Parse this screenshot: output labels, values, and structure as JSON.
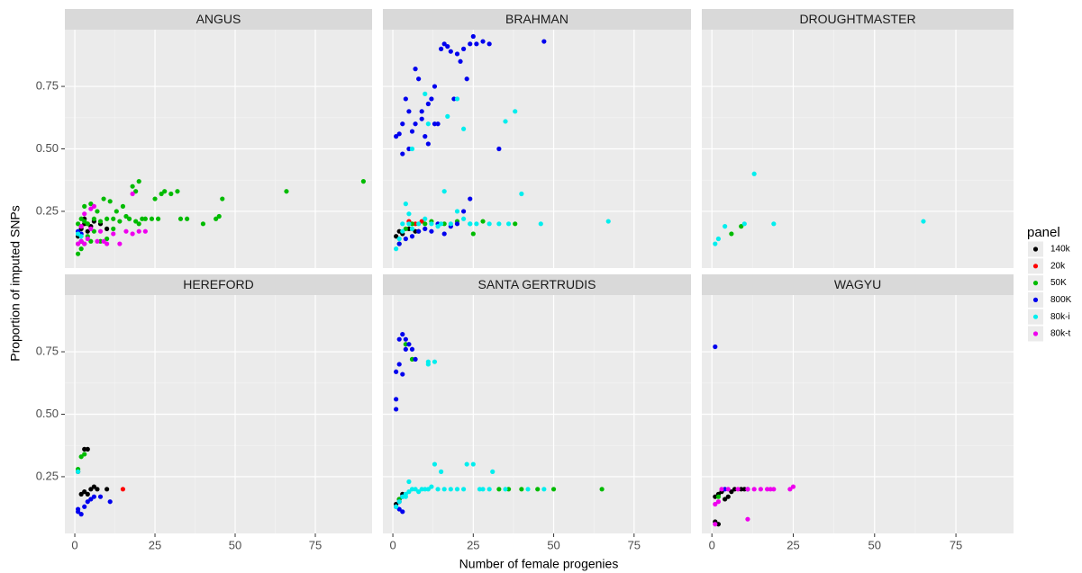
{
  "chart_data": {
    "type": "scatter",
    "xlabel": "Number of female progenies",
    "ylabel": "Proportion of imputed SNPs",
    "legend_title": "panel",
    "legend_position": "right",
    "grid": true,
    "xlim": [
      -3.1,
      92.7
    ],
    "ylim": [
      0.023,
      0.977
    ],
    "xticks": [
      0,
      25,
      50,
      75
    ],
    "yticks": [
      0.25,
      {
        "value": 0.5,
        "label": "0.50"
      },
      0.75
    ],
    "series": [
      {
        "name": "140k",
        "color": "#000000"
      },
      {
        "name": "20k",
        "color": "#ff0000"
      },
      {
        "name": "50K",
        "color": "#00bb00"
      },
      {
        "name": "800K",
        "color": "#0000ee"
      },
      {
        "name": "80k-i",
        "color": "#00eeee"
      },
      {
        "name": "80k-t",
        "color": "#ee00ee"
      }
    ],
    "facets": [
      {
        "title": "ANGUS",
        "series": [
          {
            "x": [
              1,
              2,
              3,
              4,
              5,
              6,
              8,
              10,
              3,
              2
            ],
            "values": [
              0.15,
              0.18,
              0.2,
              0.17,
              0.19,
              0.21,
              0.2,
              0.18,
              0.22,
              0.13
            ]
          },
          {
            "x": [
              2,
              4
            ],
            "values": [
              0.19,
              0.2
            ]
          },
          {
            "x": [
              1,
              1,
              2,
              3,
              3,
              4,
              5,
              6,
              7,
              8,
              9,
              10,
              11,
              12,
              13,
              14,
              15,
              16,
              17,
              18,
              19,
              20,
              21,
              22,
              24,
              25,
              26,
              27,
              28,
              30,
              32,
              33,
              35,
              40,
              44,
              45,
              46,
              66,
              90,
              20,
              19,
              10,
              5,
              4,
              3,
              2,
              1,
              6,
              8,
              12
            ],
            "values": [
              0.08,
              0.2,
              0.22,
              0.27,
              0.21,
              0.2,
              0.28,
              0.22,
              0.25,
              0.21,
              0.3,
              0.22,
              0.29,
              0.22,
              0.25,
              0.21,
              0.27,
              0.23,
              0.22,
              0.35,
              0.33,
              0.37,
              0.22,
              0.22,
              0.22,
              0.3,
              0.22,
              0.32,
              0.33,
              0.32,
              0.33,
              0.22,
              0.22,
              0.2,
              0.22,
              0.23,
              0.3,
              0.33,
              0.37,
              0.2,
              0.21,
              0.14,
              0.13,
              0.15,
              0.12,
              0.1,
              0.12,
              0.17,
              0.13,
              0.18
            ]
          },
          {
            "x": [
              1,
              2
            ],
            "values": [
              0.17,
              0.16
            ]
          },
          {
            "x": [
              1,
              2
            ],
            "values": [
              0.16,
              0.15
            ]
          },
          {
            "x": [
              1,
              2,
              3,
              4,
              5,
              6,
              7,
              8,
              9,
              10,
              12,
              14,
              16,
              18,
              20,
              22,
              3,
              5,
              2,
              18
            ],
            "values": [
              0.12,
              0.13,
              0.12,
              0.14,
              0.26,
              0.27,
              0.13,
              0.17,
              0.13,
              0.12,
              0.16,
              0.12,
              0.17,
              0.16,
              0.17,
              0.17,
              0.24,
              0.18,
              0.19,
              0.32
            ]
          }
        ]
      },
      {
        "title": "BRAHMAN",
        "series": [
          {
            "x": [
              1,
              2,
              3,
              5,
              7
            ],
            "values": [
              0.15,
              0.17,
              0.16,
              0.18,
              0.17
            ]
          },
          {
            "x": [
              5,
              7,
              9
            ],
            "values": [
              0.21,
              0.2,
              0.21
            ]
          },
          {
            "x": [
              2,
              4,
              6,
              8,
              10,
              12,
              16,
              20,
              25,
              28,
              38
            ],
            "values": [
              0.12,
              0.18,
              0.2,
              0.17,
              0.2,
              0.21,
              0.2,
              0.21,
              0.16,
              0.21,
              0.2
            ]
          },
          {
            "x": [
              1,
              2,
              3,
              4,
              5,
              6,
              7,
              8,
              9,
              10,
              11,
              12,
              13,
              14,
              15,
              16,
              17,
              18,
              19,
              20,
              21,
              22,
              23,
              24,
              25,
              26,
              28,
              30,
              33,
              47,
              3,
              5,
              7,
              9,
              11,
              13,
              2,
              4,
              6,
              8,
              10,
              12,
              14,
              16,
              18,
              20,
              22,
              24
            ],
            "values": [
              0.55,
              0.56,
              0.6,
              0.7,
              0.65,
              0.57,
              0.82,
              0.78,
              0.62,
              0.55,
              0.68,
              0.7,
              0.75,
              0.6,
              0.9,
              0.92,
              0.91,
              0.89,
              0.7,
              0.88,
              0.85,
              0.9,
              0.78,
              0.92,
              0.95,
              0.92,
              0.93,
              0.92,
              0.5,
              0.93,
              0.48,
              0.5,
              0.6,
              0.65,
              0.52,
              0.6,
              0.12,
              0.14,
              0.15,
              0.17,
              0.18,
              0.17,
              0.2,
              0.16,
              0.19,
              0.2,
              0.25,
              0.3
            ]
          },
          {
            "x": [
              1,
              2,
              3,
              4,
              5,
              6,
              8,
              10,
              12,
              14,
              15,
              16,
              18,
              20,
              22,
              24,
              26,
              30,
              33,
              35,
              38,
              40,
              46,
              67,
              6,
              10,
              17,
              20,
              22,
              36,
              11,
              24,
              3,
              5
            ],
            "values": [
              0.1,
              0.14,
              0.17,
              0.28,
              0.2,
              0.18,
              0.2,
              0.22,
              0.2,
              0.19,
              0.2,
              0.33,
              0.2,
              0.25,
              0.22,
              0.2,
              0.2,
              0.2,
              0.2,
              0.61,
              0.65,
              0.32,
              0.2,
              0.21,
              0.5,
              0.72,
              0.63,
              0.7,
              0.58,
              0.2,
              0.6,
              0.2,
              0.2,
              0.24
            ]
          },
          {
            "x": [],
            "values": []
          }
        ]
      },
      {
        "title": "DROUGHTMASTER",
        "series": [
          {
            "x": [],
            "values": []
          },
          {
            "x": [],
            "values": []
          },
          {
            "x": [
              6,
              9
            ],
            "values": [
              0.16,
              0.19
            ]
          },
          {
            "x": [],
            "values": []
          },
          {
            "x": [
              1,
              2,
              4,
              10,
              13,
              19,
              65
            ],
            "values": [
              0.12,
              0.14,
              0.19,
              0.2,
              0.4,
              0.2,
              0.21
            ]
          },
          {
            "x": [],
            "values": []
          }
        ]
      },
      {
        "title": "HEREFORD",
        "series": [
          {
            "x": [
              2,
              3,
              4,
              5,
              6,
              7,
              10,
              3,
              4,
              1
            ],
            "values": [
              0.18,
              0.19,
              0.18,
              0.2,
              0.21,
              0.2,
              0.2,
              0.36,
              0.36,
              0.27
            ]
          },
          {
            "x": [
              15
            ],
            "values": [
              0.2
            ]
          },
          {
            "x": [
              1,
              2,
              3
            ],
            "values": [
              0.28,
              0.33,
              0.34
            ]
          },
          {
            "x": [
              1,
              1,
              2,
              3,
              4,
              5,
              6,
              8,
              11
            ],
            "values": [
              0.11,
              0.12,
              0.1,
              0.13,
              0.15,
              0.16,
              0.17,
              0.17,
              0.15
            ]
          },
          {
            "x": [
              1
            ],
            "values": [
              0.27
            ]
          },
          {
            "x": [],
            "values": []
          }
        ]
      },
      {
        "title": "SANTA GERTRUDIS",
        "series": [
          {
            "x": [
              1,
              2,
              3
            ],
            "values": [
              0.14,
              0.16,
              0.18
            ]
          },
          {
            "x": [],
            "values": []
          },
          {
            "x": [
              2,
              4,
              6,
              33,
              36,
              40,
              45,
              50,
              65
            ],
            "values": [
              0.16,
              0.78,
              0.72,
              0.2,
              0.2,
              0.2,
              0.2,
              0.2,
              0.2
            ]
          },
          {
            "x": [
              1,
              1,
              1,
              2,
              2,
              3,
              3,
              4,
              4,
              5,
              6,
              7,
              2,
              3,
              1,
              2,
              3
            ],
            "values": [
              0.52,
              0.56,
              0.67,
              0.7,
              0.8,
              0.82,
              0.66,
              0.76,
              0.8,
              0.78,
              0.76,
              0.72,
              0.12,
              0.11,
              0.13,
              0.15,
              0.17
            ]
          },
          {
            "x": [
              1,
              2,
              3,
              4,
              5,
              6,
              7,
              8,
              9,
              10,
              11,
              12,
              13,
              14,
              15,
              16,
              18,
              20,
              22,
              23,
              25,
              27,
              28,
              30,
              31,
              35,
              42,
              47,
              11,
              13,
              11,
              5,
              4
            ],
            "values": [
              0.13,
              0.15,
              0.17,
              0.18,
              0.19,
              0.2,
              0.2,
              0.19,
              0.2,
              0.2,
              0.2,
              0.21,
              0.3,
              0.2,
              0.27,
              0.2,
              0.2,
              0.2,
              0.2,
              0.3,
              0.3,
              0.2,
              0.2,
              0.2,
              0.27,
              0.2,
              0.2,
              0.2,
              0.7,
              0.71,
              0.71,
              0.23,
              0.17
            ]
          },
          {
            "x": [],
            "values": []
          }
        ]
      },
      {
        "title": "WAGYU",
        "series": [
          {
            "x": [
              1,
              2,
              3,
              4,
              5,
              6,
              7,
              9,
              10,
              2,
              1
            ],
            "values": [
              0.17,
              0.18,
              0.19,
              0.16,
              0.17,
              0.19,
              0.2,
              0.2,
              0.2,
              0.06,
              0.07
            ]
          },
          {
            "x": [],
            "values": []
          },
          {
            "x": [
              2
            ],
            "values": [
              0.17
            ]
          },
          {
            "x": [
              1,
              11,
              4
            ],
            "values": [
              0.77,
              0.2,
              0.2
            ]
          },
          {
            "x": [],
            "values": []
          },
          {
            "x": [
              1,
              2,
              3,
              5,
              8,
              11,
              13,
              15,
              17,
              18,
              19,
              24,
              25,
              11,
              1
            ],
            "values": [
              0.14,
              0.15,
              0.2,
              0.2,
              0.2,
              0.2,
              0.2,
              0.2,
              0.2,
              0.2,
              0.2,
              0.2,
              0.21,
              0.08,
              0.06
            ]
          }
        ]
      }
    ]
  }
}
